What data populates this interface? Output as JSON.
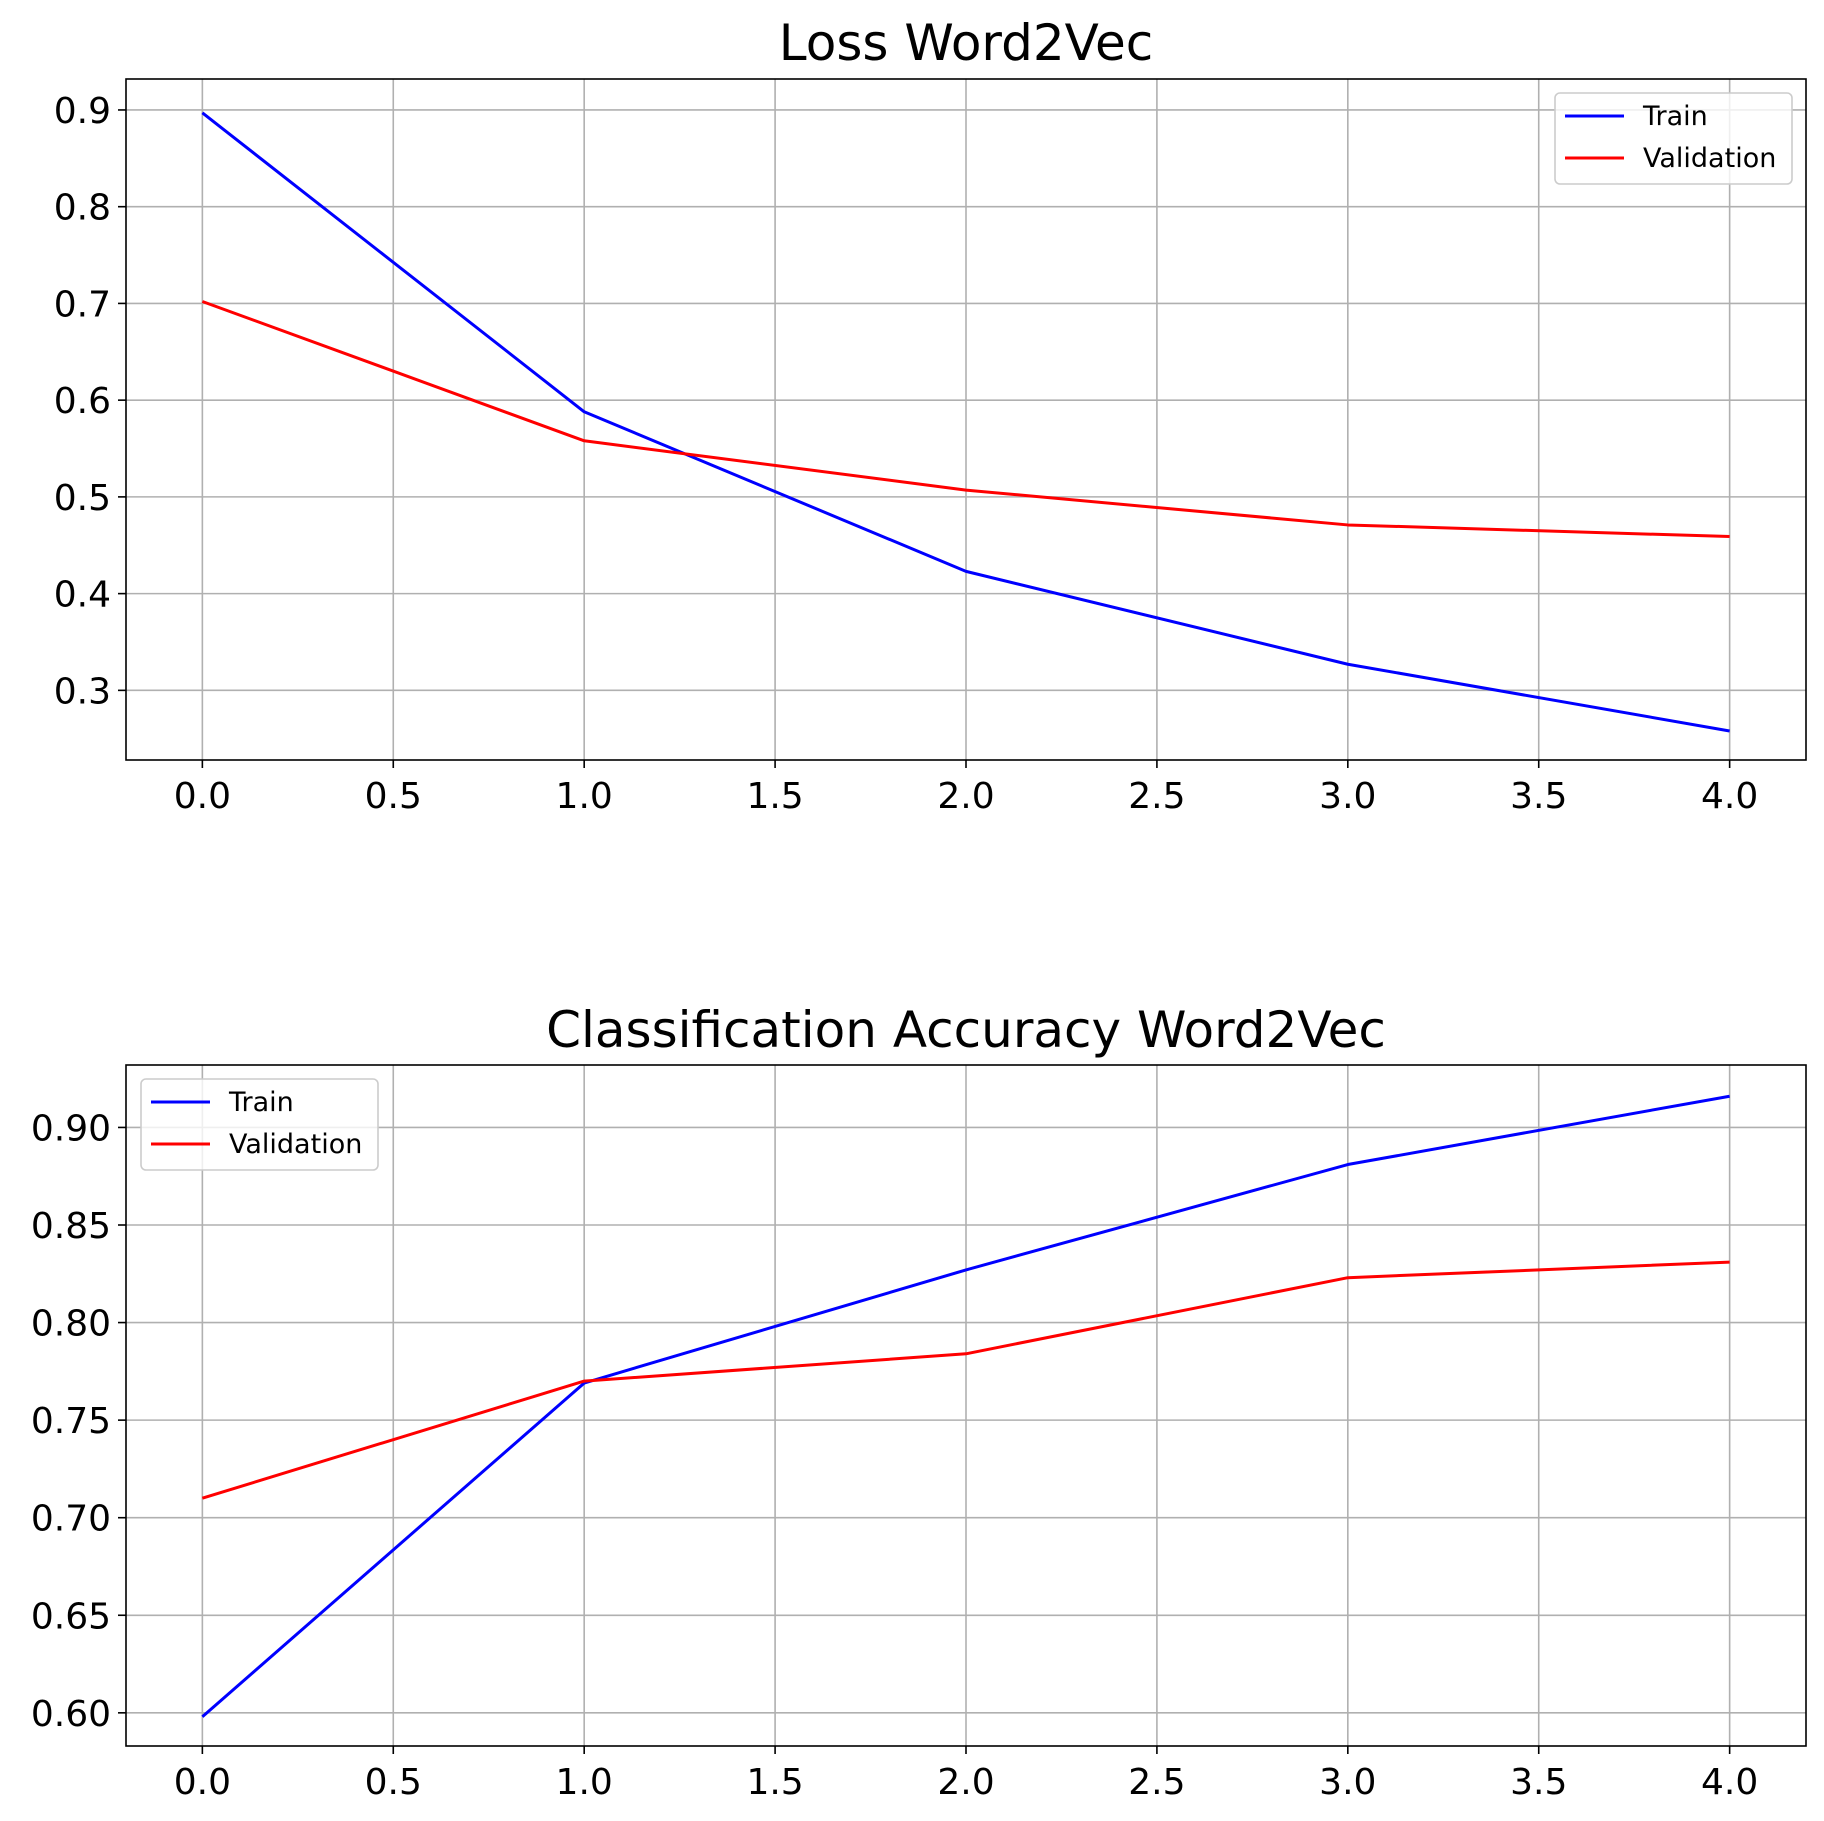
{
  "chart_data": [
    {
      "type": "line",
      "title": "Loss Word2Vec",
      "xlabel": "",
      "ylabel": "",
      "xlim": [
        -0.2,
        4.2
      ],
      "ylim": [
        0.228,
        0.932
      ],
      "x_ticks": [
        0.0,
        0.5,
        1.0,
        1.5,
        2.0,
        2.5,
        3.0,
        3.5,
        4.0
      ],
      "x_tick_labels": [
        "0.0",
        "0.5",
        "1.0",
        "1.5",
        "2.0",
        "2.5",
        "3.0",
        "3.5",
        "4.0"
      ],
      "y_ticks": [
        0.3,
        0.4,
        0.5,
        0.6,
        0.7,
        0.8,
        0.9
      ],
      "y_tick_labels": [
        "0.3",
        "0.4",
        "0.5",
        "0.6",
        "0.7",
        "0.8",
        "0.9"
      ],
      "x": [
        0,
        1,
        2,
        3,
        4
      ],
      "series": [
        {
          "name": "Train",
          "color": "#0000ff",
          "values": [
            0.897,
            0.588,
            0.423,
            0.327,
            0.258
          ]
        },
        {
          "name": "Validation",
          "color": "#ff0000",
          "values": [
            0.702,
            0.558,
            0.507,
            0.471,
            0.459
          ]
        }
      ],
      "grid": true,
      "legend": "upper right"
    },
    {
      "type": "line",
      "title": "Classification Accuracy Word2Vec",
      "xlabel": "",
      "ylabel": "",
      "xlim": [
        -0.2,
        4.2
      ],
      "ylim": [
        0.583,
        0.932
      ],
      "x_ticks": [
        0.0,
        0.5,
        1.0,
        1.5,
        2.0,
        2.5,
        3.0,
        3.5,
        4.0
      ],
      "x_tick_labels": [
        "0.0",
        "0.5",
        "1.0",
        "1.5",
        "2.0",
        "2.5",
        "3.0",
        "3.5",
        "4.0"
      ],
      "y_ticks": [
        0.6,
        0.65,
        0.7,
        0.75,
        0.8,
        0.85,
        0.9
      ],
      "y_tick_labels": [
        "0.60",
        "0.65",
        "0.70",
        "0.75",
        "0.80",
        "0.85",
        "0.90"
      ],
      "x": [
        0,
        1,
        2,
        3,
        4
      ],
      "series": [
        {
          "name": "Train",
          "color": "#0000ff",
          "values": [
            0.598,
            0.769,
            0.827,
            0.881,
            0.916
          ]
        },
        {
          "name": "Validation",
          "color": "#ff0000",
          "values": [
            0.71,
            0.77,
            0.784,
            0.823,
            0.831
          ]
        }
      ],
      "grid": true,
      "legend": "upper left"
    }
  ]
}
